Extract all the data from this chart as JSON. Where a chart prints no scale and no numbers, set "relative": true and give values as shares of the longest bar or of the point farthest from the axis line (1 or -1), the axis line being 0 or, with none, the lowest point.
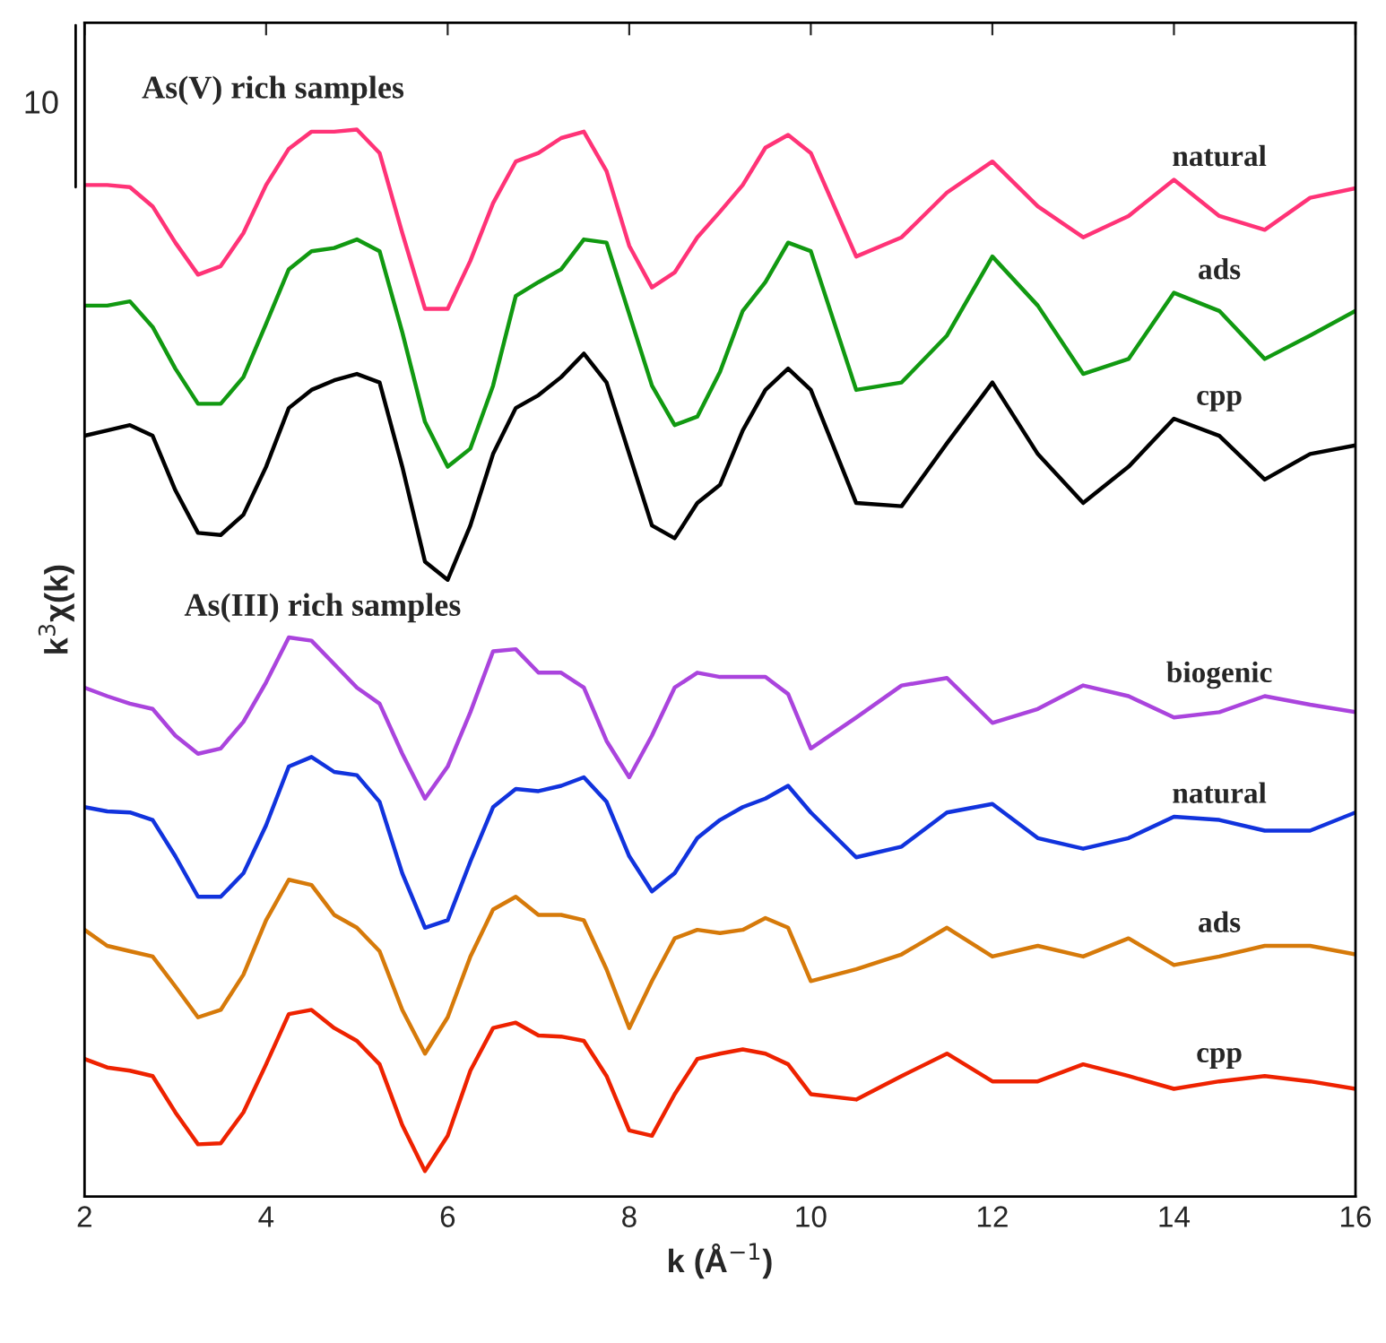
{
  "chart_data": {
    "type": "line",
    "relative": true,
    "xlabel": "k (Å$^{−1}$)",
    "ylabel": "k$^{3}$χ(k)",
    "x": [
      2,
      2.25,
      2.5,
      2.75,
      3,
      3.25,
      3.5,
      3.75,
      4,
      4.25,
      4.5,
      4.75,
      5,
      5.25,
      5.5,
      5.75,
      6,
      6.25,
      6.5,
      6.75,
      7,
      7.25,
      7.5,
      7.75,
      8,
      8.25,
      8.5,
      8.75,
      9,
      9.25,
      9.5,
      9.75,
      10,
      10.5,
      11,
      11.5,
      12,
      12.5,
      13,
      13.5,
      14,
      14.5,
      15,
      15.5,
      16
    ],
    "xlim": [
      2,
      16
    ],
    "xticks": [
      2,
      4,
      6,
      8,
      10,
      12,
      14,
      16
    ],
    "annotations": [
      "As(V) rich samples",
      "As(III) rich samples",
      "10"
    ],
    "series": [
      {
        "name": "natural",
        "color": "#ff3377",
        "values": [
          0.948,
          0.948,
          0.946,
          0.928,
          0.894,
          0.864,
          0.872,
          0.903,
          0.948,
          0.982,
          0.998,
          0.998,
          1,
          0.978,
          0.903,
          0.832,
          0.832,
          0.877,
          0.931,
          0.97,
          0.978,
          0.992,
          0.998,
          0.961,
          0.891,
          0.852,
          0.866,
          0.899,
          0.923,
          0.948,
          0.983,
          0.995,
          0.978,
          0.881,
          0.899,
          0.941,
          0.97,
          0.928,
          0.899,
          0.919,
          0.953,
          0.919,
          0.906,
          0.936,
          0.945
        ]
      },
      {
        "name": "ads",
        "color": "#119911",
        "values": [
          0.835,
          0.835,
          0.839,
          0.815,
          0.776,
          0.743,
          0.743,
          0.768,
          0.818,
          0.869,
          0.886,
          0.889,
          0.897,
          0.886,
          0.81,
          0.726,
          0.684,
          0.701,
          0.76,
          0.844,
          0.857,
          0.869,
          0.897,
          0.894,
          0.827,
          0.76,
          0.723,
          0.731,
          0.773,
          0.83,
          0.857,
          0.894,
          0.886,
          0.756,
          0.763,
          0.807,
          0.881,
          0.835,
          0.771,
          0.785,
          0.847,
          0.83,
          0.785,
          0.807,
          0.83
        ]
      },
      {
        "name": "cpp",
        "color": "#000000",
        "values": [
          0.713,
          0.718,
          0.723,
          0.713,
          0.662,
          0.622,
          0.62,
          0.639,
          0.684,
          0.739,
          0.756,
          0.765,
          0.771,
          0.763,
          0.684,
          0.595,
          0.578,
          0.629,
          0.696,
          0.739,
          0.751,
          0.768,
          0.79,
          0.763,
          0.696,
          0.629,
          0.617,
          0.65,
          0.667,
          0.718,
          0.756,
          0.776,
          0.756,
          0.65,
          0.647,
          0.706,
          0.763,
          0.696,
          0.65,
          0.684,
          0.729,
          0.713,
          0.672,
          0.696,
          0.704
        ]
      },
      {
        "name": "biogenic",
        "color": "#aa44dd",
        "values": [
          0.477,
          0.469,
          0.462,
          0.457,
          0.432,
          0.415,
          0.42,
          0.445,
          0.482,
          0.524,
          0.521,
          0.499,
          0.477,
          0.462,
          0.415,
          0.373,
          0.403,
          0.454,
          0.511,
          0.513,
          0.491,
          0.491,
          0.477,
          0.427,
          0.393,
          0.432,
          0.477,
          0.491,
          0.487,
          0.487,
          0.487,
          0.471,
          0.42,
          0.449,
          0.479,
          0.486,
          0.444,
          0.457,
          0.479,
          0.469,
          0.449,
          0.454,
          0.469,
          0.461,
          0.454
        ]
      },
      {
        "name": "natural",
        "color": "#1133dd",
        "values": [
          0.365,
          0.361,
          0.36,
          0.353,
          0.319,
          0.281,
          0.281,
          0.303,
          0.348,
          0.403,
          0.412,
          0.398,
          0.395,
          0.37,
          0.303,
          0.252,
          0.259,
          0.314,
          0.365,
          0.382,
          0.38,
          0.385,
          0.393,
          0.37,
          0.319,
          0.286,
          0.303,
          0.336,
          0.353,
          0.365,
          0.373,
          0.385,
          0.36,
          0.318,
          0.328,
          0.36,
          0.368,
          0.336,
          0.326,
          0.336,
          0.356,
          0.353,
          0.343,
          0.343,
          0.36
        ]
      },
      {
        "name": "ads",
        "color": "#d67a0a",
        "values": [
          0.25,
          0.235,
          0.23,
          0.225,
          0.197,
          0.168,
          0.175,
          0.208,
          0.259,
          0.297,
          0.292,
          0.264,
          0.252,
          0.23,
          0.175,
          0.134,
          0.168,
          0.225,
          0.269,
          0.281,
          0.264,
          0.264,
          0.259,
          0.213,
          0.158,
          0.202,
          0.242,
          0.25,
          0.247,
          0.25,
          0.261,
          0.252,
          0.202,
          0.213,
          0.227,
          0.252,
          0.225,
          0.235,
          0.225,
          0.242,
          0.217,
          0.225,
          0.235,
          0.235,
          0.227
        ]
      },
      {
        "name": "cpp",
        "color": "#ee2200",
        "values": [
          0.129,
          0.121,
          0.118,
          0.113,
          0.079,
          0.049,
          0.05,
          0.079,
          0.124,
          0.171,
          0.175,
          0.158,
          0.146,
          0.124,
          0.067,
          0.024,
          0.057,
          0.118,
          0.158,
          0.163,
          0.151,
          0.15,
          0.146,
          0.113,
          0.062,
          0.057,
          0.096,
          0.129,
          0.134,
          0.138,
          0.134,
          0.124,
          0.096,
          0.091,
          0.113,
          0.134,
          0.108,
          0.108,
          0.124,
          0.113,
          0.101,
          0.108,
          0.113,
          0.108,
          0.101
        ]
      }
    ]
  }
}
